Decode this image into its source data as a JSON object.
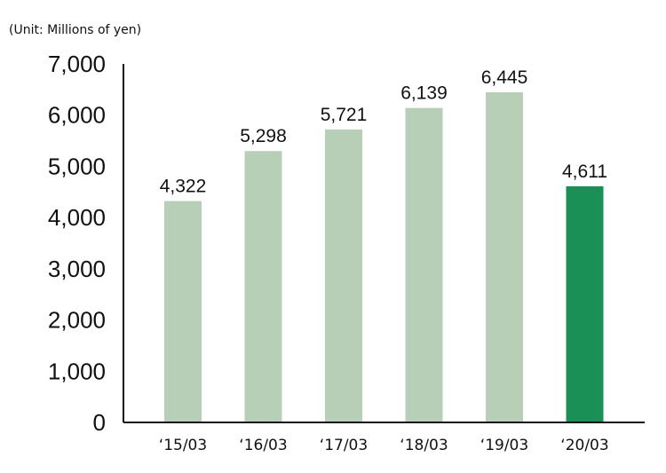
{
  "chart_data": {
    "type": "bar",
    "unit_label": "(Unit: Millions of yen)",
    "categories": [
      "‘15/03",
      "‘16/03",
      "‘17/03",
      "‘18/03",
      "‘19/03",
      "‘20/03"
    ],
    "values": [
      4322,
      5298,
      5721,
      6139,
      6445,
      4611
    ],
    "value_labels": [
      "4,322",
      "5,298",
      "5,721",
      "6,139",
      "6,445",
      "4,611"
    ],
    "yticks": [
      0,
      1000,
      2000,
      3000,
      4000,
      5000,
      6000,
      7000
    ],
    "ytick_labels": [
      "0",
      "1,000",
      "2,000",
      "3,000",
      "4,000",
      "5,000",
      "6,000",
      "7,000"
    ],
    "ylim": [
      0,
      7000
    ],
    "grid": false,
    "colors": {
      "bar": "#b8cfb7",
      "highlight": "#1a9057",
      "axis": "#111111"
    },
    "highlight_index": 5
  }
}
